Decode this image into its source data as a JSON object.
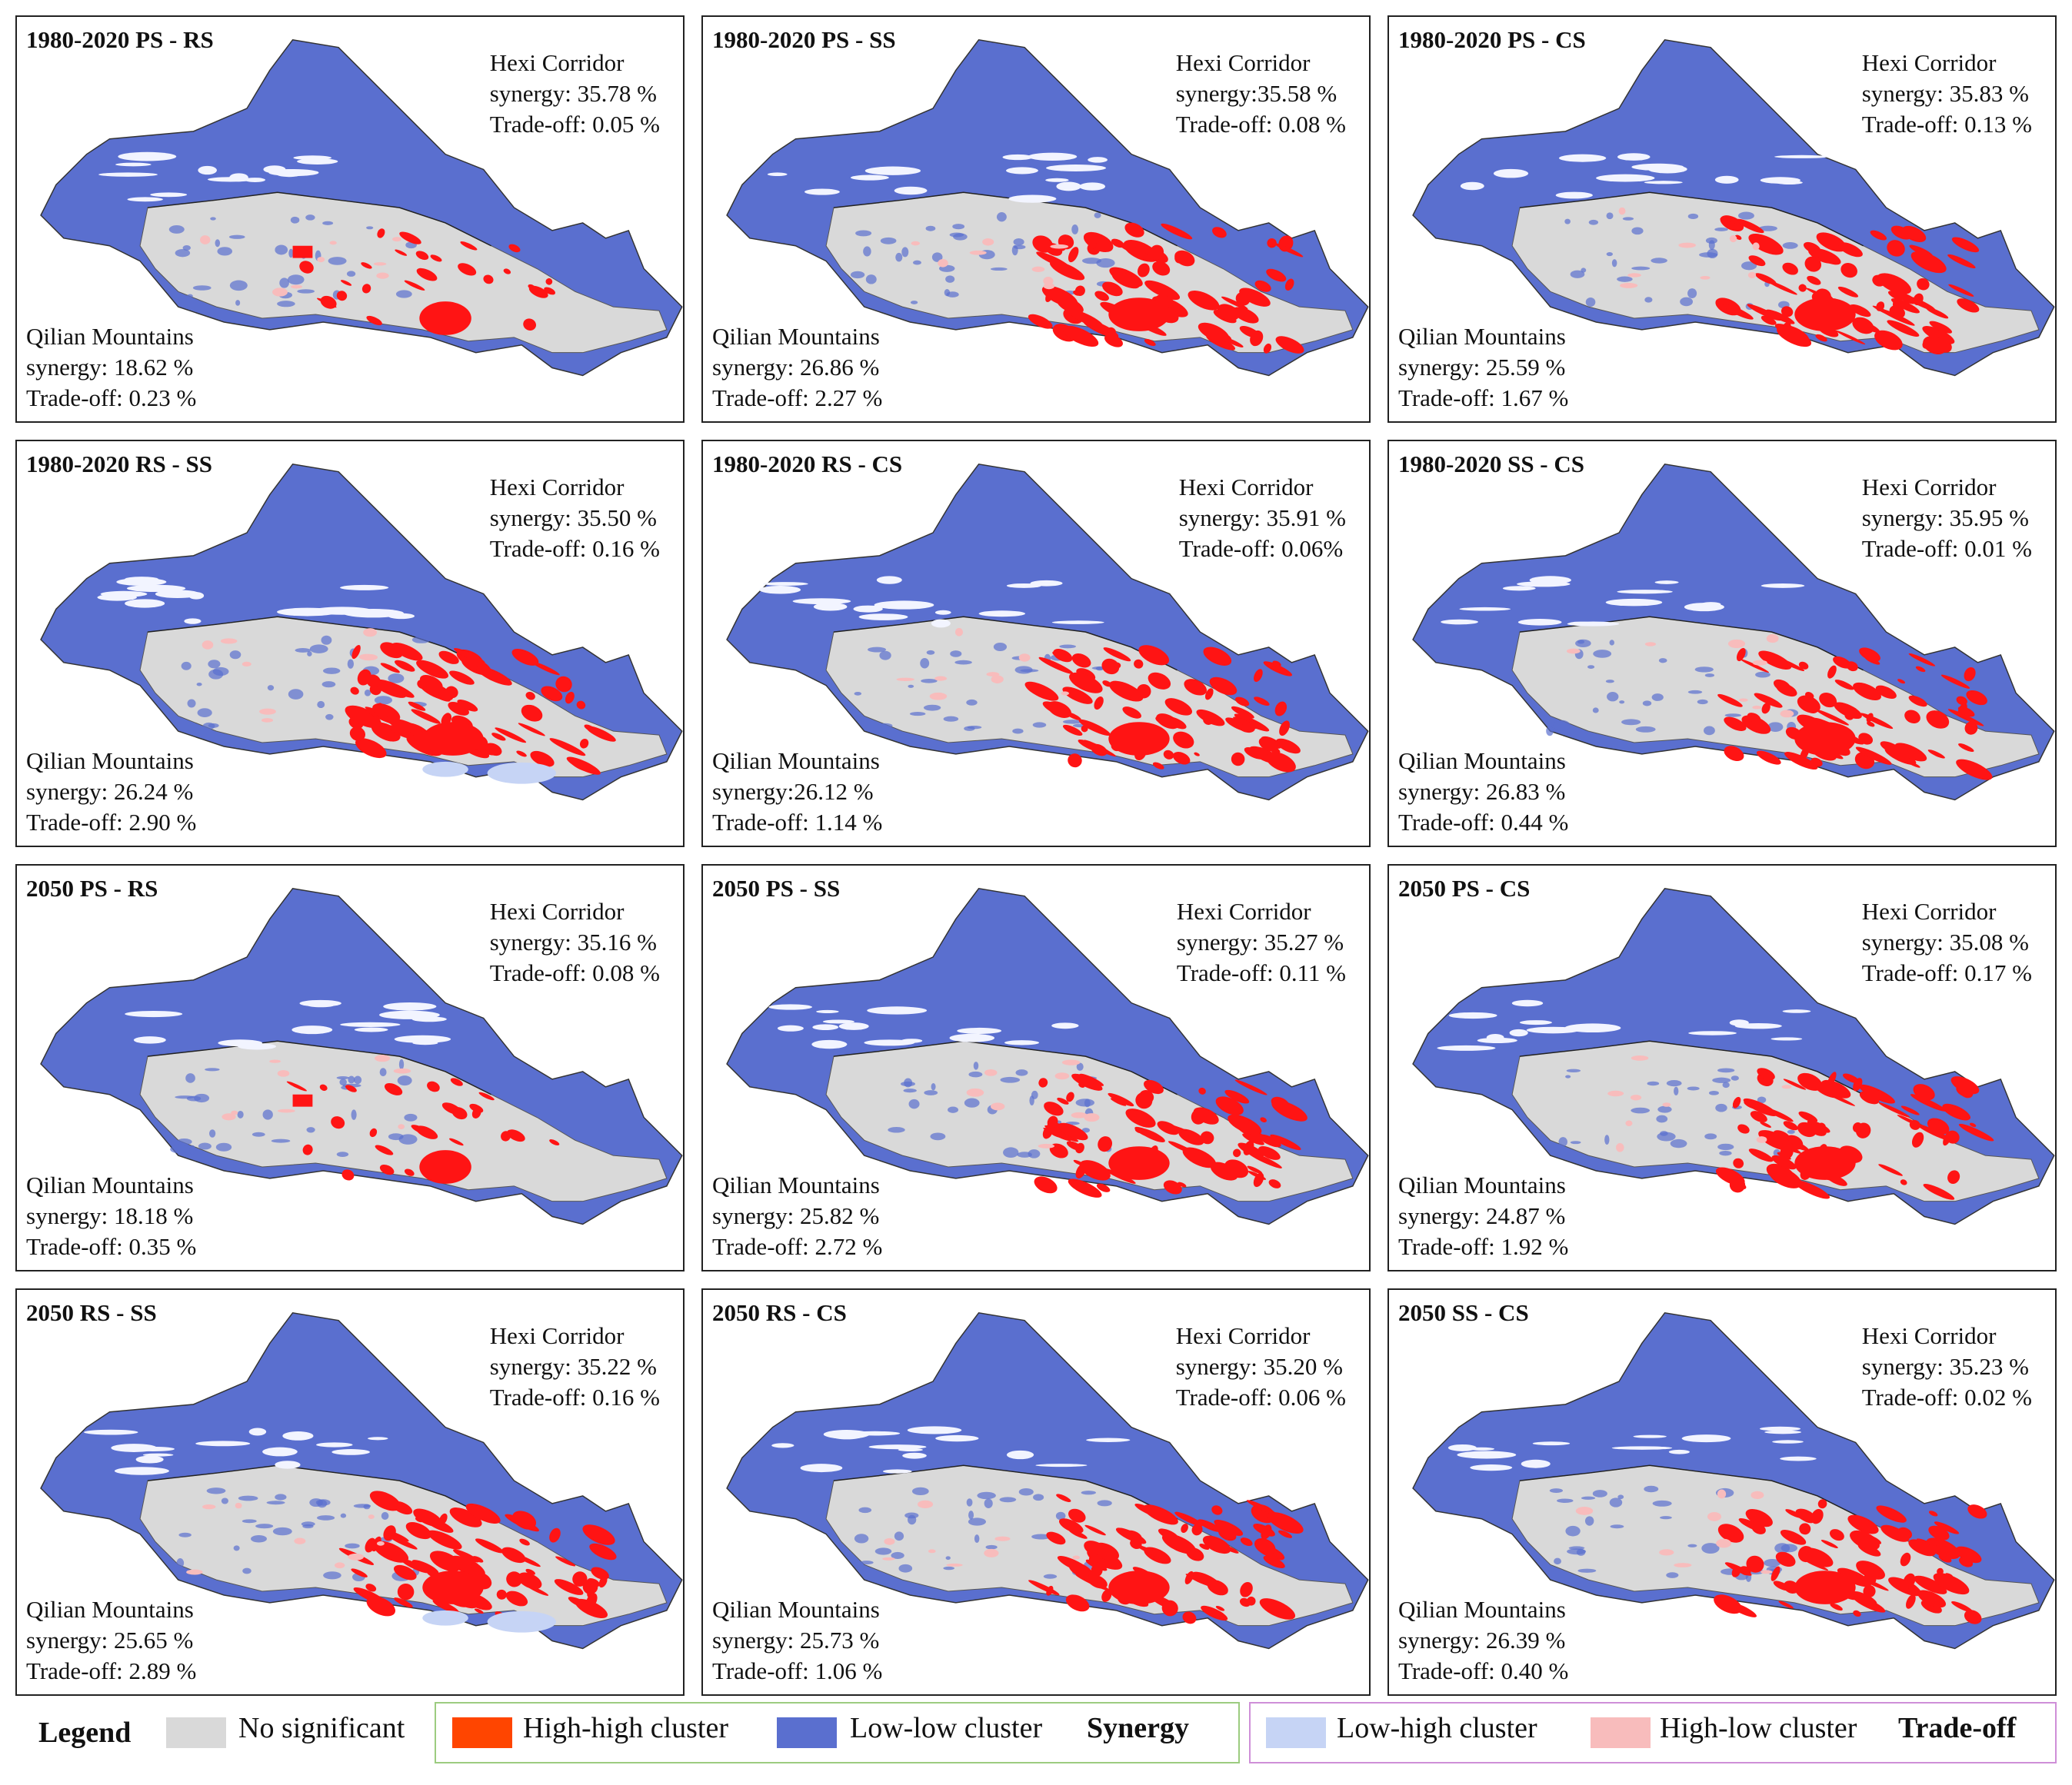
{
  "colors": {
    "no_significant": "#d9d9d9",
    "high_high": "#ff4500",
    "high_high_map": "#ff1414",
    "low_low": "#5a6fcf",
    "low_high": "#c6d4f5",
    "high_low": "#f8bcbc",
    "synergy_box": "#9ccc80",
    "tradeoff_box": "#cf8fd8"
  },
  "panels": [
    {
      "title": "1980-2020 PS - RS",
      "hexi_name": "Hexi Corridor",
      "hexi_synergy": "synergy: 35.78 %",
      "hexi_tradeoff": "Trade-off: 0.05 %",
      "qilian_name": "Qilian Mountains",
      "qilian_synergy": "synergy: 18.62 %",
      "qilian_tradeoff": "Trade-off: 0.23 %",
      "pattern": "sparse"
    },
    {
      "title": "1980-2020 PS - SS",
      "hexi_name": "Hexi Corridor",
      "hexi_synergy": "synergy:35.58 %",
      "hexi_tradeoff": "Trade-off: 0.08 %",
      "qilian_name": "Qilian Mountains",
      "qilian_synergy": "synergy:  26.86 %",
      "qilian_tradeoff": "Trade-off: 2.27 %",
      "pattern": "dense"
    },
    {
      "title": "1980-2020 PS - CS",
      "hexi_name": "Hexi Corridor",
      "hexi_synergy": "synergy: 35.83 %",
      "hexi_tradeoff": "Trade-off: 0.13 %",
      "qilian_name": "Qilian Mountains",
      "qilian_synergy": "synergy:  25.59 %",
      "qilian_tradeoff": "Trade-off: 1.67 %",
      "pattern": "dense"
    },
    {
      "title": "1980-2020 RS - SS",
      "hexi_name": "Hexi Corridor",
      "hexi_synergy": "synergy: 35.50 %",
      "hexi_tradeoff": "Trade-off: 0.16 %",
      "qilian_name": "Qilian Mountains",
      "qilian_synergy": "synergy: 26.24 %",
      "qilian_tradeoff": "Trade-off: 2.90 %",
      "pattern": "dense_lh"
    },
    {
      "title": "1980-2020 RS - CS",
      "hexi_name": "Hexi Corridor",
      "hexi_synergy": "synergy: 35.91 %",
      "hexi_tradeoff": "Trade-off: 0.06%",
      "qilian_name": "Qilian Mountains",
      "qilian_synergy": "synergy:26.12 %",
      "qilian_tradeoff": "Trade-off: 1.14 %",
      "pattern": "dense"
    },
    {
      "title": "1980-2020 SS - CS",
      "hexi_name": "Hexi Corridor",
      "hexi_synergy": "synergy: 35.95 %",
      "hexi_tradeoff": "Trade-off: 0.01 %",
      "qilian_name": "Qilian Mountains",
      "qilian_synergy": "synergy: 26.83 %",
      "qilian_tradeoff": "Trade-off: 0.44 %",
      "pattern": "dense"
    },
    {
      "title": "2050 PS - RS",
      "hexi_name": "Hexi Corridor",
      "hexi_synergy": "synergy: 35.16 %",
      "hexi_tradeoff": "Trade-off: 0.08 %",
      "qilian_name": "Qilian Mountains",
      "qilian_synergy": "synergy: 18.18 %",
      "qilian_tradeoff": "Trade-off: 0.35 %",
      "pattern": "sparse"
    },
    {
      "title": "2050 PS - SS",
      "hexi_name": "Hexi Corridor",
      "hexi_synergy": "synergy: 35.27 %",
      "hexi_tradeoff": "Trade-off: 0.11 %",
      "qilian_name": "Qilian Mountains",
      "qilian_synergy": "synergy: 25.82 %",
      "qilian_tradeoff": "Trade-off: 2.72 %",
      "pattern": "dense"
    },
    {
      "title": "2050 PS - CS",
      "hexi_name": "Hexi Corridor",
      "hexi_synergy": "synergy: 35.08 %",
      "hexi_tradeoff": "Trade-off: 0.17 %",
      "qilian_name": "Qilian Mountains",
      "qilian_synergy": "synergy: 24.87 %",
      "qilian_tradeoff": "Trade-off: 1.92 %",
      "pattern": "dense"
    },
    {
      "title": "2050 RS - SS",
      "hexi_name": "Hexi Corridor",
      "hexi_synergy": "synergy: 35.22 %",
      "hexi_tradeoff": "Trade-off: 0.16 %",
      "qilian_name": "Qilian Mountains",
      "qilian_synergy": "synergy: 25.65 %",
      "qilian_tradeoff": "Trade-off: 2.89 %",
      "pattern": "dense_lh"
    },
    {
      "title": "2050 RS - CS",
      "hexi_name": "Hexi Corridor",
      "hexi_synergy": "synergy: 35.20 %",
      "hexi_tradeoff": "Trade-off: 0.06 %",
      "qilian_name": "Qilian Mountains",
      "qilian_synergy": "synergy: 25.73 %",
      "qilian_tradeoff": "Trade-off: 1.06 %",
      "pattern": "dense"
    },
    {
      "title": "2050 SS - CS",
      "hexi_name": "Hexi Corridor",
      "hexi_synergy": "synergy: 35.23 %",
      "hexi_tradeoff": "Trade-off: 0.02 %",
      "qilian_name": "Qilian Mountains",
      "qilian_synergy": "synergy: 26.39 %",
      "qilian_tradeoff": "Trade-off: 0.40 %",
      "pattern": "dense"
    }
  ],
  "legend": {
    "title": "Legend",
    "no_significant": "No significant",
    "high_high": "High-high cluster",
    "low_low": "Low-low cluster",
    "synergy": "Synergy",
    "low_high": "Low-high cluster",
    "high_low": "High-low cluster",
    "tradeoff": "Trade-off"
  }
}
